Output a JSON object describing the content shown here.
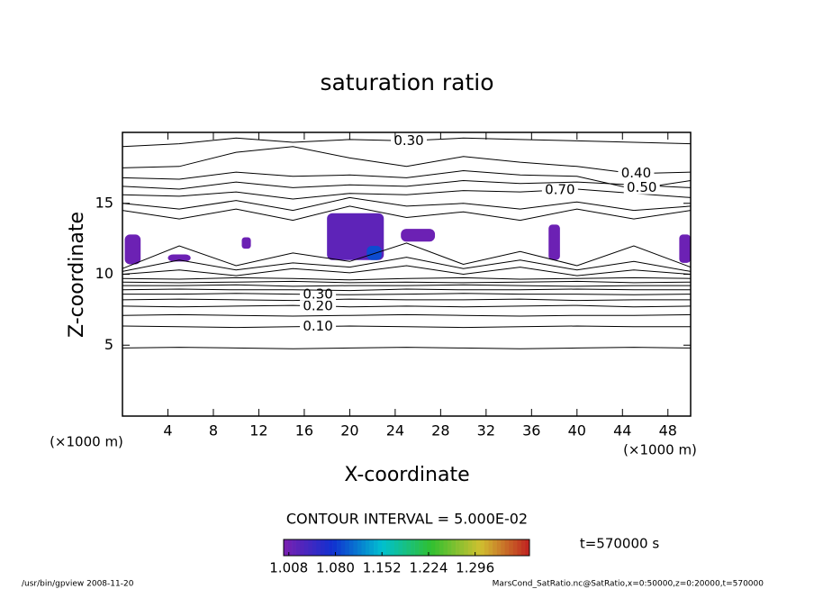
{
  "chart_data": {
    "type": "contour",
    "title": "saturation ratio",
    "xlabel": "X-coordinate",
    "ylabel": "Z-coordinate",
    "x_unit": "(×1000 m)",
    "xlim": [
      0,
      50
    ],
    "ylim": [
      0,
      20
    ],
    "xticks": [
      4,
      8,
      12,
      16,
      20,
      24,
      28,
      32,
      36,
      40,
      44,
      48
    ],
    "yticks": [
      5,
      10,
      15
    ],
    "contour_x": [
      0,
      5,
      10,
      15,
      20,
      25,
      30,
      35,
      40,
      45,
      50
    ],
    "contours": [
      {
        "level": 0.05,
        "z": [
          4.8,
          4.85,
          4.8,
          4.75,
          4.8,
          4.85,
          4.8,
          4.75,
          4.8,
          4.85,
          4.8
        ]
      },
      {
        "level": 0.1,
        "label": "0.10",
        "z": [
          6.35,
          6.3,
          6.25,
          6.3,
          6.35,
          6.3,
          6.25,
          6.3,
          6.35,
          6.3,
          6.3
        ]
      },
      {
        "level": 0.15,
        "z": [
          7.1,
          7.15,
          7.1,
          7.05,
          7.1,
          7.15,
          7.1,
          7.05,
          7.1,
          7.1,
          7.15
        ]
      },
      {
        "level": 0.2,
        "label": "0.20",
        "z": [
          7.75,
          7.7,
          7.75,
          7.8,
          7.7,
          7.75,
          7.7,
          7.75,
          7.8,
          7.7,
          7.75
        ]
      },
      {
        "level": 0.25,
        "z": [
          8.2,
          8.25,
          8.2,
          8.15,
          8.25,
          8.2,
          8.2,
          8.25,
          8.15,
          8.2,
          8.2
        ]
      },
      {
        "level": 0.3,
        "label": "0.30",
        "z": [
          8.6,
          8.6,
          8.65,
          8.6,
          8.55,
          8.6,
          8.65,
          8.6,
          8.6,
          8.55,
          8.6
        ]
      },
      {
        "level": 0.35,
        "z": [
          8.9,
          8.95,
          8.9,
          8.9,
          8.85,
          8.95,
          8.9,
          8.9,
          8.95,
          8.9,
          8.9
        ]
      },
      {
        "level": 0.4,
        "z": [
          9.2,
          9.2,
          9.25,
          9.15,
          9.2,
          9.2,
          9.25,
          9.2,
          9.15,
          9.2,
          9.2
        ]
      },
      {
        "level": 0.45,
        "z": [
          9.45,
          9.4,
          9.45,
          9.5,
          9.4,
          9.45,
          9.4,
          9.45,
          9.5,
          9.4,
          9.45
        ]
      },
      {
        "level": 0.5,
        "z": [
          9.7,
          9.65,
          9.75,
          9.7,
          9.6,
          9.7,
          9.75,
          9.65,
          9.7,
          9.75,
          9.7
        ]
      },
      {
        "level": 0.6,
        "z": [
          10.0,
          10.3,
          9.9,
          10.4,
          10.1,
          10.6,
          10.0,
          10.5,
          9.9,
          10.3,
          10.0
        ]
      },
      {
        "level": 0.7,
        "z": [
          10.2,
          11.0,
          10.3,
          10.8,
          10.5,
          11.2,
          10.4,
          11.0,
          10.3,
          10.9,
          10.2
        ]
      },
      {
        "level": 0.9,
        "z": [
          10.4,
          12.0,
          10.6,
          11.5,
          10.9,
          12.2,
          10.7,
          11.6,
          10.6,
          12.0,
          10.5
        ]
      },
      {
        "level": 0.9,
        "z": [
          14.5,
          13.9,
          14.6,
          13.8,
          14.8,
          14.0,
          14.4,
          13.8,
          14.6,
          13.9,
          14.5
        ]
      },
      {
        "level": 0.8,
        "z": [
          15.0,
          14.6,
          15.2,
          14.5,
          15.4,
          14.8,
          15.0,
          14.6,
          15.1,
          14.5,
          14.8
        ]
      },
      {
        "level": 0.7,
        "label": "0.70",
        "z": [
          15.6,
          15.5,
          15.8,
          15.3,
          15.7,
          15.6,
          15.9,
          15.8,
          16.0,
          15.7,
          15.4
        ]
      },
      {
        "level": 0.6,
        "z": [
          16.2,
          16.0,
          16.5,
          16.1,
          16.3,
          16.2,
          16.6,
          16.4,
          16.5,
          16.3,
          16.1
        ]
      },
      {
        "level": 0.5,
        "label": "0.50",
        "z": [
          16.8,
          16.7,
          17.2,
          16.9,
          17.0,
          16.8,
          17.3,
          17.0,
          16.9,
          16.0,
          16.6
        ]
      },
      {
        "level": 0.4,
        "label": "0.40",
        "z": [
          17.5,
          17.6,
          18.6,
          19.0,
          18.2,
          17.6,
          18.3,
          17.9,
          17.6,
          17.1,
          17.2
        ]
      },
      {
        "level": 0.3,
        "label": "0.30",
        "z": [
          19.0,
          19.2,
          19.6,
          19.3,
          19.5,
          19.4,
          19.6,
          19.5,
          19.4,
          19.3,
          19.2
        ]
      }
    ],
    "regions": [
      {
        "x": [
          18,
          23
        ],
        "z": [
          11.0,
          14.3
        ],
        "value": 1.02
      },
      {
        "x": [
          0.2,
          1.6
        ],
        "z": [
          10.7,
          12.8
        ],
        "value": 1.01
      },
      {
        "x": [
          24.5,
          27.5
        ],
        "z": [
          12.3,
          13.2
        ],
        "value": 1.01
      },
      {
        "x": [
          21.5,
          22.8
        ],
        "z": [
          11.0,
          12.0
        ],
        "value": 1.09
      },
      {
        "x": [
          37.5,
          38.5
        ],
        "z": [
          11.0,
          13.5
        ],
        "value": 1.01
      },
      {
        "x": [
          49,
          50
        ],
        "z": [
          10.8,
          12.8
        ],
        "value": 1.01
      },
      {
        "x": [
          4,
          6
        ],
        "z": [
          10.9,
          11.4
        ],
        "value": 1.01
      },
      {
        "x": [
          10.5,
          11.3
        ],
        "z": [
          11.8,
          12.6
        ],
        "value": 1.01
      }
    ],
    "contour_interval_text": "CONTOUR INTERVAL = 5.000E-02",
    "colorbar": {
      "clim": [
        1.0,
        1.38
      ],
      "colors": [
        "#7a1fb0",
        "#1030d0",
        "#00c0d0",
        "#30c030",
        "#d0c030",
        "#c02020"
      ],
      "ticks": [
        1.008,
        {
          "value": 1.08,
          "label": "1.080"
        },
        1.152,
        1.224,
        1.296
      ]
    },
    "time_text": "t=570000 s",
    "footer_left": "/usr/bin/gpview  2008-11-20",
    "footer_right": "MarsCond_SatRatio.nc@SatRatio,x=0:50000,z=0:20000,t=570000"
  }
}
